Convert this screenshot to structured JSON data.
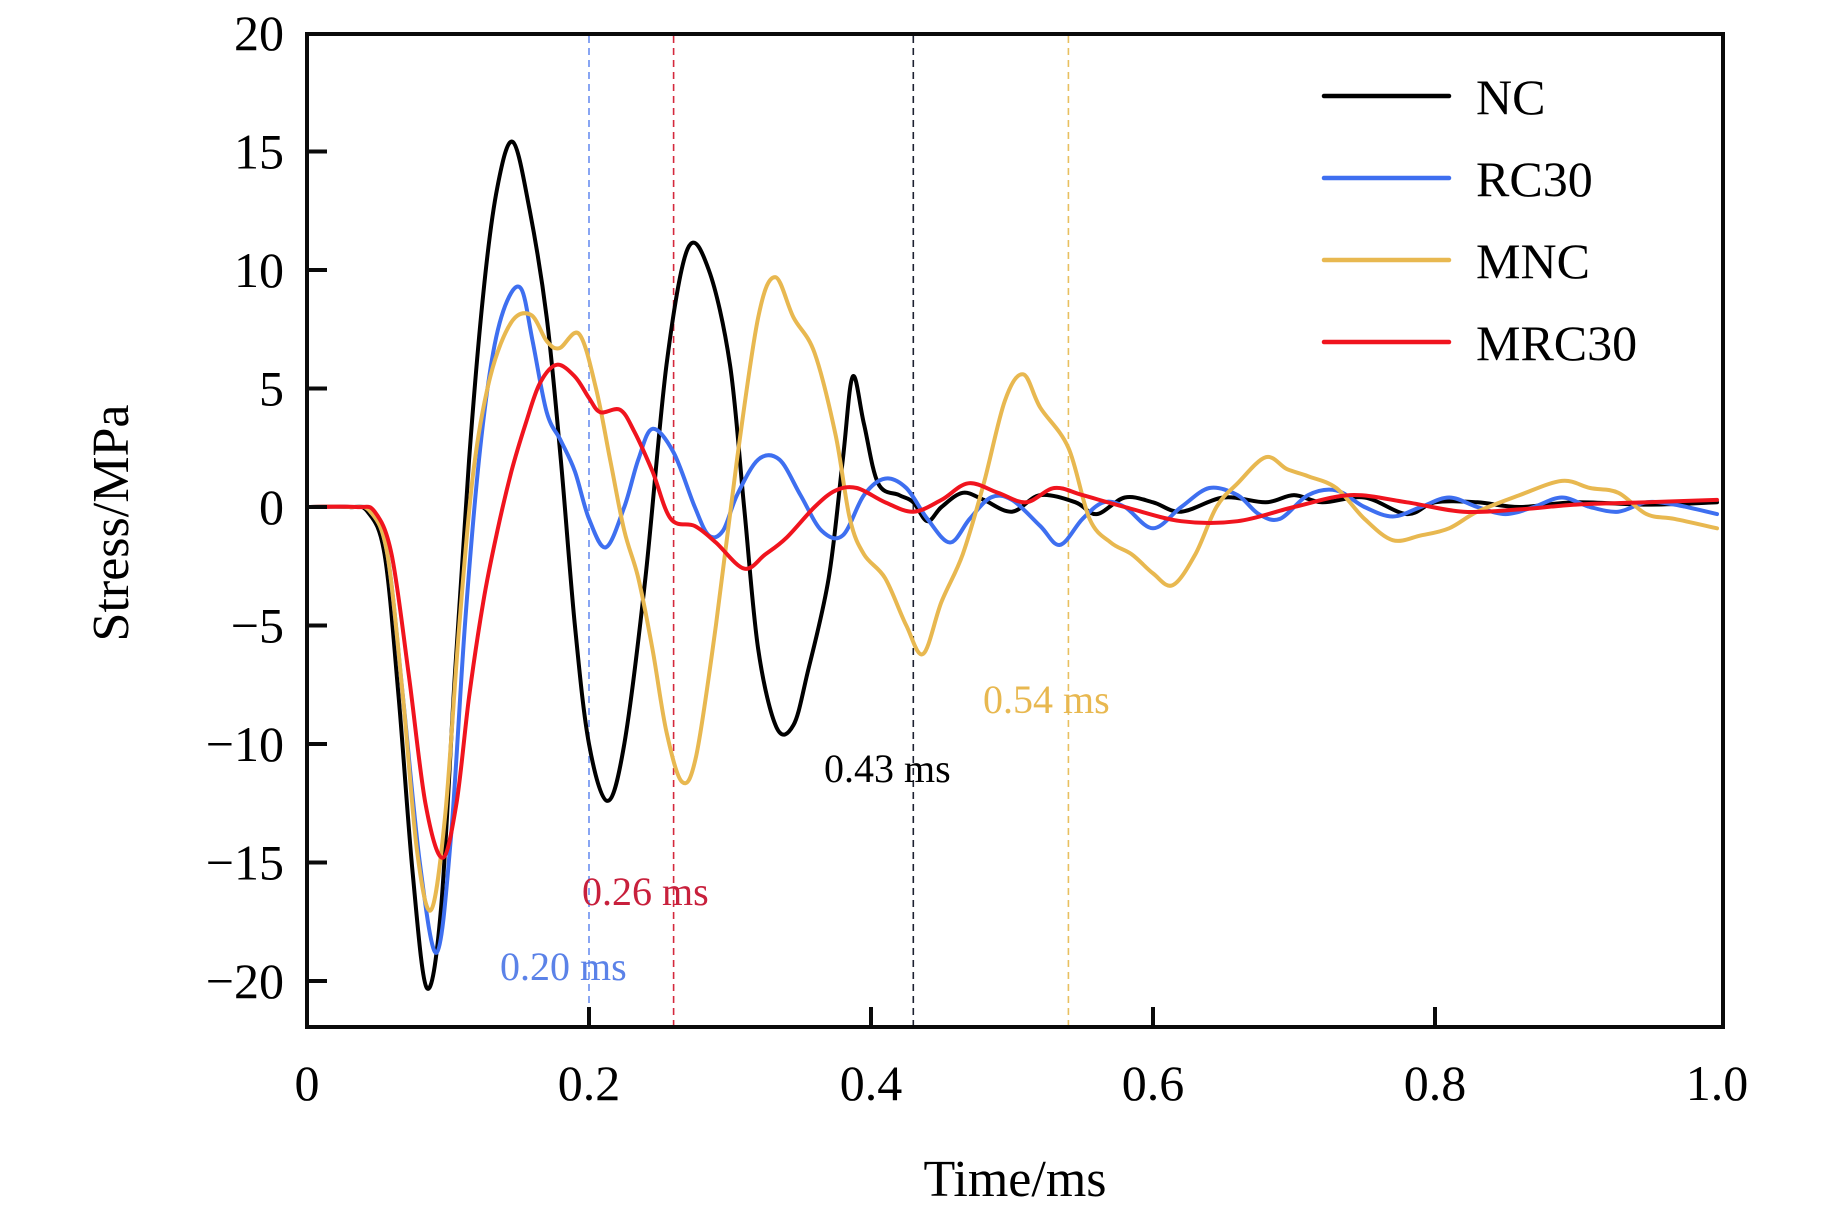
{
  "chart_data": {
    "type": "line",
    "title": "",
    "xlabel": "Time/ms",
    "ylabel": "Stress/MPa",
    "xlim": [
      0,
      1.0
    ],
    "ylim": [
      -22,
      20
    ],
    "xticks": [
      0,
      0.2,
      0.4,
      0.6,
      0.8,
      1.0
    ],
    "xtick_labels": [
      "0",
      "0.2",
      "0.4",
      "0.6",
      "0.8",
      "1.0"
    ],
    "yticks": [
      20,
      15,
      10,
      5,
      0,
      -5,
      -10,
      -15,
      -20
    ],
    "ytick_labels": [
      "20",
      "15",
      "10",
      "5",
      "0",
      "−5",
      "−10",
      "−15",
      "−20"
    ],
    "grid": false,
    "legend_position": "top-right",
    "series": [
      {
        "name": "NC",
        "color": "#000000",
        "points": [
          [
            0,
            0
          ],
          [
            0.03,
            0
          ],
          [
            0.043,
            -0.2
          ],
          [
            0.055,
            -2
          ],
          [
            0.065,
            -8
          ],
          [
            0.075,
            -15.5
          ],
          [
            0.085,
            -20.3
          ],
          [
            0.095,
            -17
          ],
          [
            0.105,
            -7
          ],
          [
            0.115,
            2
          ],
          [
            0.125,
            9
          ],
          [
            0.135,
            13.5
          ],
          [
            0.146,
            15.4
          ],
          [
            0.158,
            12.5
          ],
          [
            0.17,
            8
          ],
          [
            0.18,
            2
          ],
          [
            0.19,
            -5
          ],
          [
            0.2,
            -10
          ],
          [
            0.213,
            -12.4
          ],
          [
            0.225,
            -10
          ],
          [
            0.24,
            -3
          ],
          [
            0.255,
            6
          ],
          [
            0.27,
            10.9
          ],
          [
            0.285,
            10
          ],
          [
            0.3,
            6
          ],
          [
            0.31,
            0
          ],
          [
            0.32,
            -6
          ],
          [
            0.333,
            -9.3
          ],
          [
            0.345,
            -9.2
          ],
          [
            0.355,
            -7
          ],
          [
            0.37,
            -3
          ],
          [
            0.38,
            2
          ],
          [
            0.387,
            5.5
          ],
          [
            0.395,
            3.5
          ],
          [
            0.405,
            1
          ],
          [
            0.42,
            0.5
          ],
          [
            0.43,
            0.2
          ],
          [
            0.44,
            -0.6
          ],
          [
            0.45,
            0
          ],
          [
            0.465,
            0.6
          ],
          [
            0.48,
            0.3
          ],
          [
            0.5,
            -0.2
          ],
          [
            0.52,
            0.5
          ],
          [
            0.545,
            0.2
          ],
          [
            0.56,
            -0.3
          ],
          [
            0.58,
            0.4
          ],
          [
            0.6,
            0.2
          ],
          [
            0.62,
            -0.2
          ],
          [
            0.65,
            0.4
          ],
          [
            0.68,
            0.2
          ],
          [
            0.7,
            0.5
          ],
          [
            0.72,
            0.2
          ],
          [
            0.75,
            0.4
          ],
          [
            0.78,
            -0.3
          ],
          [
            0.8,
            0.2
          ],
          [
            0.83,
            0.2
          ],
          [
            0.86,
            0
          ],
          [
            0.9,
            0.2
          ],
          [
            0.95,
            0.1
          ],
          [
            1.0,
            0.2
          ]
        ]
      },
      {
        "name": "RC30",
        "color": "#3e6ff0",
        "points": [
          [
            0,
            0
          ],
          [
            0.03,
            0
          ],
          [
            0.045,
            -0.2
          ],
          [
            0.057,
            -2
          ],
          [
            0.068,
            -8
          ],
          [
            0.08,
            -15
          ],
          [
            0.092,
            -18.8
          ],
          [
            0.102,
            -14
          ],
          [
            0.112,
            -5
          ],
          [
            0.122,
            2
          ],
          [
            0.132,
            6.5
          ],
          [
            0.142,
            8.7
          ],
          [
            0.152,
            9.2
          ],
          [
            0.16,
            7
          ],
          [
            0.17,
            4
          ],
          [
            0.18,
            2.8
          ],
          [
            0.19,
            1.5
          ],
          [
            0.2,
            -0.5
          ],
          [
            0.212,
            -1.7
          ],
          [
            0.225,
            0
          ],
          [
            0.235,
            2
          ],
          [
            0.245,
            3.3
          ],
          [
            0.26,
            2.3
          ],
          [
            0.275,
            0
          ],
          [
            0.285,
            -1.2
          ],
          [
            0.295,
            -1
          ],
          [
            0.305,
            0.5
          ],
          [
            0.32,
            2
          ],
          [
            0.335,
            2
          ],
          [
            0.35,
            0.5
          ],
          [
            0.365,
            -1
          ],
          [
            0.38,
            -1.2
          ],
          [
            0.395,
            0.5
          ],
          [
            0.41,
            1.2
          ],
          [
            0.425,
            0.8
          ],
          [
            0.44,
            -0.5
          ],
          [
            0.456,
            -1.5
          ],
          [
            0.47,
            -0.5
          ],
          [
            0.485,
            0.4
          ],
          [
            0.5,
            0.3
          ],
          [
            0.52,
            -0.8
          ],
          [
            0.534,
            -1.6
          ],
          [
            0.55,
            -0.5
          ],
          [
            0.565,
            0.2
          ],
          [
            0.58,
            0
          ],
          [
            0.6,
            -0.9
          ],
          [
            0.62,
            0
          ],
          [
            0.64,
            0.8
          ],
          [
            0.66,
            0.5
          ],
          [
            0.675,
            -0.3
          ],
          [
            0.69,
            -0.5
          ],
          [
            0.71,
            0.5
          ],
          [
            0.73,
            0.7
          ],
          [
            0.75,
            0
          ],
          [
            0.77,
            -0.4
          ],
          [
            0.79,
            0
          ],
          [
            0.81,
            0.4
          ],
          [
            0.83,
            0
          ],
          [
            0.85,
            -0.3
          ],
          [
            0.87,
            0
          ],
          [
            0.89,
            0.4
          ],
          [
            0.91,
            0
          ],
          [
            0.93,
            -0.2
          ],
          [
            0.95,
            0.2
          ],
          [
            0.97,
            0.1
          ],
          [
            1.0,
            -0.3
          ]
        ]
      },
      {
        "name": "MNC",
        "color": "#e8b850",
        "points": [
          [
            0,
            0
          ],
          [
            0.03,
            0
          ],
          [
            0.045,
            -0.2
          ],
          [
            0.057,
            -2
          ],
          [
            0.068,
            -8
          ],
          [
            0.078,
            -14.5
          ],
          [
            0.088,
            -17.0
          ],
          [
            0.098,
            -13
          ],
          [
            0.108,
            -5
          ],
          [
            0.118,
            1.5
          ],
          [
            0.13,
            5.5
          ],
          [
            0.145,
            7.8
          ],
          [
            0.159,
            8.1
          ],
          [
            0.17,
            7
          ],
          [
            0.179,
            6.7
          ],
          [
            0.193,
            7.3
          ],
          [
            0.205,
            5
          ],
          [
            0.215,
            2
          ],
          [
            0.225,
            -1
          ],
          [
            0.235,
            -3
          ],
          [
            0.245,
            -6
          ],
          [
            0.255,
            -9.5
          ],
          [
            0.266,
            -11.6
          ],
          [
            0.276,
            -10.5
          ],
          [
            0.29,
            -5
          ],
          [
            0.305,
            2
          ],
          [
            0.32,
            8
          ],
          [
            0.332,
            9.7
          ],
          [
            0.345,
            8
          ],
          [
            0.36,
            6.5
          ],
          [
            0.375,
            3
          ],
          [
            0.385,
            -0.5
          ],
          [
            0.395,
            -2
          ],
          [
            0.41,
            -3
          ],
          [
            0.425,
            -5
          ],
          [
            0.437,
            -6.2
          ],
          [
            0.45,
            -4
          ],
          [
            0.465,
            -2
          ],
          [
            0.48,
            1
          ],
          [
            0.495,
            4.5
          ],
          [
            0.508,
            5.6
          ],
          [
            0.52,
            4.2
          ],
          [
            0.54,
            2.5
          ],
          [
            0.555,
            -0.5
          ],
          [
            0.57,
            -1.5
          ],
          [
            0.585,
            -2
          ],
          [
            0.6,
            -2.8
          ],
          [
            0.614,
            -3.3
          ],
          [
            0.63,
            -2
          ],
          [
            0.645,
            0
          ],
          [
            0.66,
            1
          ],
          [
            0.68,
            2.1
          ],
          [
            0.695,
            1.6
          ],
          [
            0.71,
            1.3
          ],
          [
            0.73,
            0.8
          ],
          [
            0.75,
            -0.5
          ],
          [
            0.77,
            -1.4
          ],
          [
            0.79,
            -1.2
          ],
          [
            0.81,
            -0.9
          ],
          [
            0.83,
            -0.2
          ],
          [
            0.86,
            0.5
          ],
          [
            0.89,
            1.1
          ],
          [
            0.91,
            0.8
          ],
          [
            0.93,
            0.6
          ],
          [
            0.95,
            -0.3
          ],
          [
            0.97,
            -0.5
          ],
          [
            1.0,
            -0.9
          ]
        ]
      },
      {
        "name": "MRC30",
        "color": "#f0141e",
        "points": [
          [
            0,
            0
          ],
          [
            0.035,
            0
          ],
          [
            0.048,
            -0.2
          ],
          [
            0.06,
            -2
          ],
          [
            0.072,
            -7
          ],
          [
            0.084,
            -12.5
          ],
          [
            0.096,
            -14.8
          ],
          [
            0.106,
            -12.5
          ],
          [
            0.115,
            -8
          ],
          [
            0.125,
            -4
          ],
          [
            0.135,
            -1
          ],
          [
            0.145,
            1.5
          ],
          [
            0.155,
            3.5
          ],
          [
            0.165,
            5.2
          ],
          [
            0.177,
            6.0
          ],
          [
            0.19,
            5.5
          ],
          [
            0.2,
            4.6
          ],
          [
            0.208,
            4.0
          ],
          [
            0.222,
            4.1
          ],
          [
            0.232,
            3.2
          ],
          [
            0.245,
            1.5
          ],
          [
            0.258,
            -0.5
          ],
          [
            0.275,
            -0.8
          ],
          [
            0.29,
            -1.5
          ],
          [
            0.31,
            -2.6
          ],
          [
            0.325,
            -2
          ],
          [
            0.34,
            -1.3
          ],
          [
            0.36,
            0
          ],
          [
            0.375,
            0.7
          ],
          [
            0.39,
            0.8
          ],
          [
            0.41,
            0.2
          ],
          [
            0.43,
            -0.2
          ],
          [
            0.45,
            0.3
          ],
          [
            0.469,
            1.0
          ],
          [
            0.49,
            0.6
          ],
          [
            0.51,
            0.2
          ],
          [
            0.53,
            0.8
          ],
          [
            0.55,
            0.5
          ],
          [
            0.58,
            0
          ],
          [
            0.62,
            -0.6
          ],
          [
            0.66,
            -0.6
          ],
          [
            0.7,
            0
          ],
          [
            0.74,
            0.5
          ],
          [
            0.78,
            0.2
          ],
          [
            0.82,
            -0.2
          ],
          [
            0.86,
            -0.1
          ],
          [
            0.9,
            0.1
          ],
          [
            0.95,
            0.2
          ],
          [
            1.0,
            0.3
          ]
        ]
      }
    ],
    "annotations": [
      {
        "text": "0.20 ms",
        "x": 0.2,
        "color": "#5b82e8",
        "line_color": "#6a8ff0"
      },
      {
        "text": "0.26 ms",
        "x": 0.26,
        "color": "#c8203c",
        "line_color": "#d4283c"
      },
      {
        "text": "0.43 ms",
        "x": 0.43,
        "color": "#000000",
        "line_color": "#1c2030"
      },
      {
        "text": "0.54 ms",
        "x": 0.54,
        "color": "#e8b850",
        "line_color": "#e8c060"
      }
    ]
  }
}
